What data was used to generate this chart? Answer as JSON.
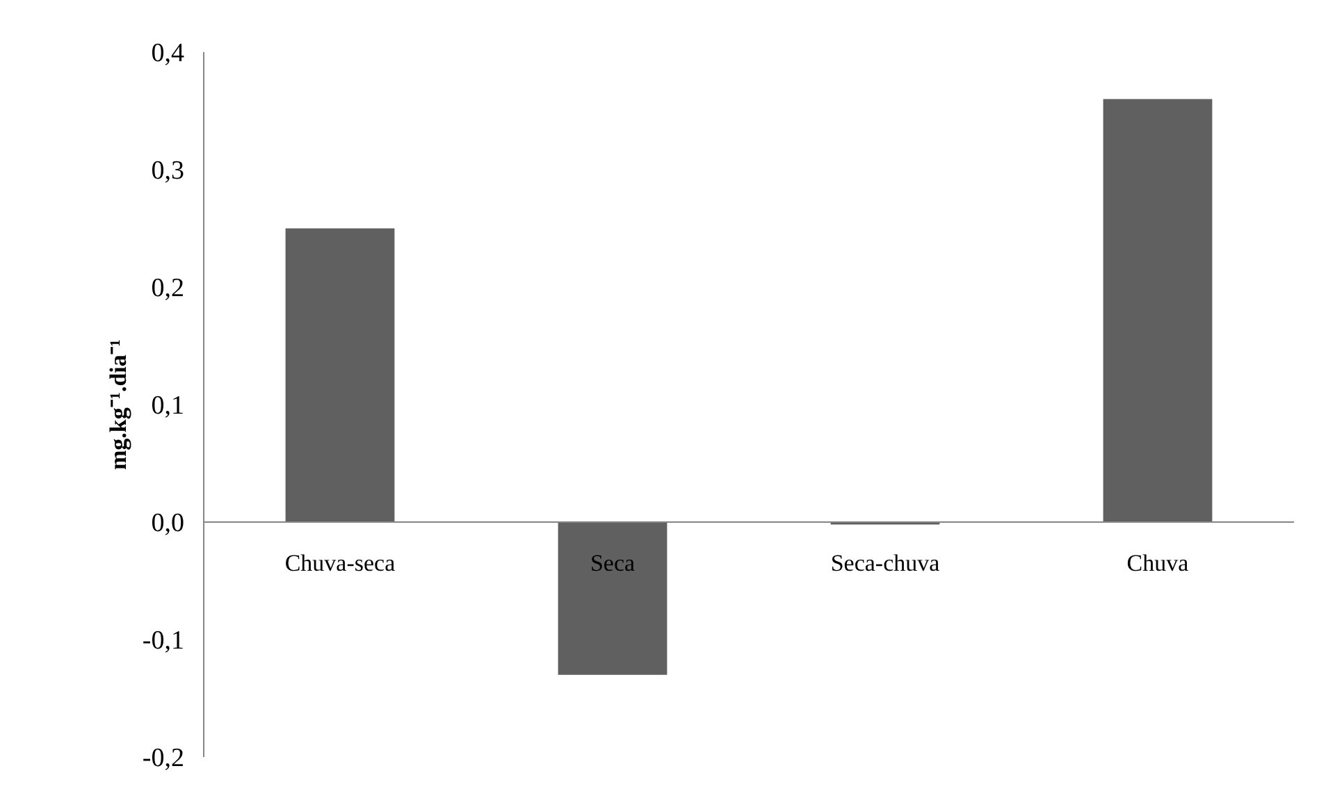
{
  "chart_data": {
    "type": "bar",
    "ylabel": "mg.kg⁻¹.dia⁻¹",
    "categories": [
      "Chuva-seca",
      "Seca",
      "Seca-chuva",
      "Chuva"
    ],
    "values": [
      0.25,
      -0.13,
      -0.002,
      0.36
    ],
    "color": "#606060",
    "ylim": [
      -0.2,
      0.4
    ],
    "yticks": [
      {
        "value": -0.2,
        "label": "-0,2"
      },
      {
        "value": -0.1,
        "label": "-0,1"
      },
      {
        "value": 0.0,
        "label": "0,0"
      },
      {
        "value": 0.1,
        "label": "0,1"
      },
      {
        "value": 0.2,
        "label": "0,2"
      },
      {
        "value": 0.3,
        "label": "0,3"
      },
      {
        "value": 0.4,
        "label": "0,4"
      }
    ],
    "grid": false
  }
}
